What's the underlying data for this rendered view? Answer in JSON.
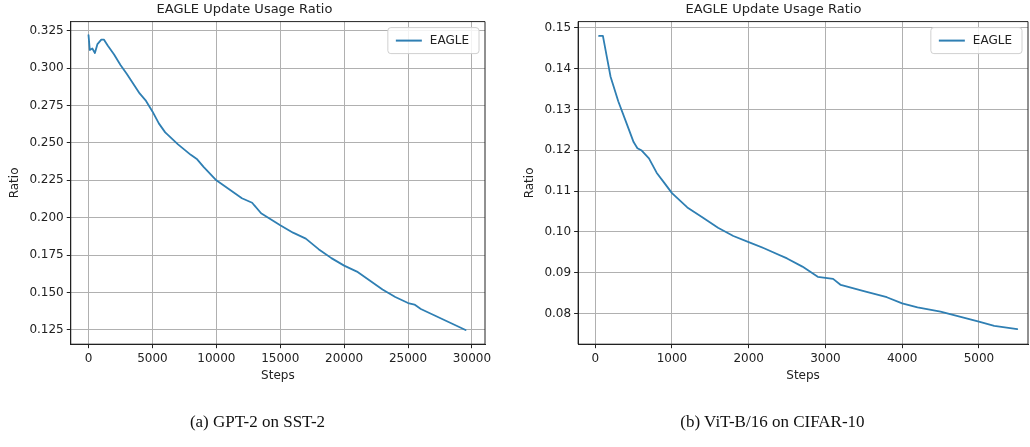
{
  "chart_data": [
    {
      "type": "line",
      "title": "EAGLE Update Usage Ratio",
      "xlabel": "Steps",
      "ylabel": "Ratio",
      "legend": "top right",
      "grid": true,
      "xlim": [
        -1390,
        31020
      ],
      "xticks": [
        0,
        5000,
        10000,
        15000,
        20000,
        25000,
        30000
      ],
      "ylim": [
        0.1155,
        0.331
      ],
      "yticks": [
        0.125,
        {
          "value": 0.15,
          "label": "0.150"
        },
        0.175,
        {
          "value": 0.2,
          "label": "0.200"
        },
        0.225,
        {
          "value": 0.25,
          "label": "0.250"
        },
        0.275,
        {
          "value": 0.3,
          "label": "0.300"
        },
        0.325
      ],
      "annotations": [
        "(a) GPT-2 on SST-2"
      ],
      "series": [
        {
          "name": "EAGLE",
          "color": "#2f7fb3",
          "x": [
            0,
            100,
            300,
            500,
            700,
            1000,
            1200,
            1500,
            2000,
            2500,
            3000,
            4000,
            4500,
            5000,
            5500,
            6000,
            7000,
            8000,
            8500,
            9000,
            10000,
            11000,
            12000,
            12800,
            13500,
            15000,
            16000,
            17000,
            18000,
            19000,
            20000,
            21000,
            22000,
            23000,
            24000,
            25000,
            25500,
            26000,
            27000,
            28000,
            29000,
            29500
          ],
          "values": [
            0.322,
            0.312,
            0.313,
            0.31,
            0.316,
            0.319,
            0.319,
            0.315,
            0.309,
            0.302,
            0.296,
            0.283,
            0.278,
            0.271,
            0.263,
            0.257,
            0.249,
            0.242,
            0.239,
            0.234,
            0.225,
            0.219,
            0.213,
            0.21,
            0.203,
            0.195,
            0.19,
            0.186,
            0.179,
            0.173,
            0.168,
            0.164,
            0.158,
            0.152,
            0.147,
            0.143,
            0.142,
            0.139,
            0.135,
            0.131,
            0.127,
            0.125
          ]
        }
      ]
    },
    {
      "type": "line",
      "title": "EAGLE Update Usage Ratio",
      "xlabel": "Steps",
      "ylabel": "Ratio",
      "legend": "top right",
      "grid": true,
      "xlim": [
        -223,
        5640
      ],
      "xticks": [
        0,
        1000,
        2000,
        3000,
        4000,
        5000
      ],
      "ylim": [
        0.0725,
        0.1515
      ],
      "yticks": [
        0.08,
        0.09,
        {
          "value": 0.1,
          "label": "0.10"
        },
        0.11,
        0.12,
        0.13,
        0.14,
        0.15
      ],
      "annotations": [
        "(b) ViT-B/16 on CIFAR-10"
      ],
      "series": [
        {
          "name": "EAGLE",
          "color": "#2f7fb3",
          "x": [
            50,
            100,
            150,
            200,
            300,
            400,
            500,
            550,
            600,
            700,
            800,
            900,
            1000,
            1200,
            1400,
            1600,
            1800,
            2000,
            2200,
            2500,
            2700,
            2900,
            3100,
            3200,
            3500,
            3800,
            4000,
            4200,
            4500,
            4800,
            5000,
            5200,
            5500
          ],
          "values": [
            0.148,
            0.148,
            0.143,
            0.138,
            0.132,
            0.127,
            0.122,
            0.1205,
            0.12,
            0.118,
            0.1145,
            0.112,
            0.1095,
            0.106,
            0.1035,
            0.101,
            0.099,
            0.0975,
            0.096,
            0.0935,
            0.0915,
            0.089,
            0.0885,
            0.087,
            0.0855,
            0.084,
            0.0825,
            0.0815,
            0.0805,
            0.079,
            0.078,
            0.077,
            0.0762
          ]
        }
      ]
    }
  ]
}
